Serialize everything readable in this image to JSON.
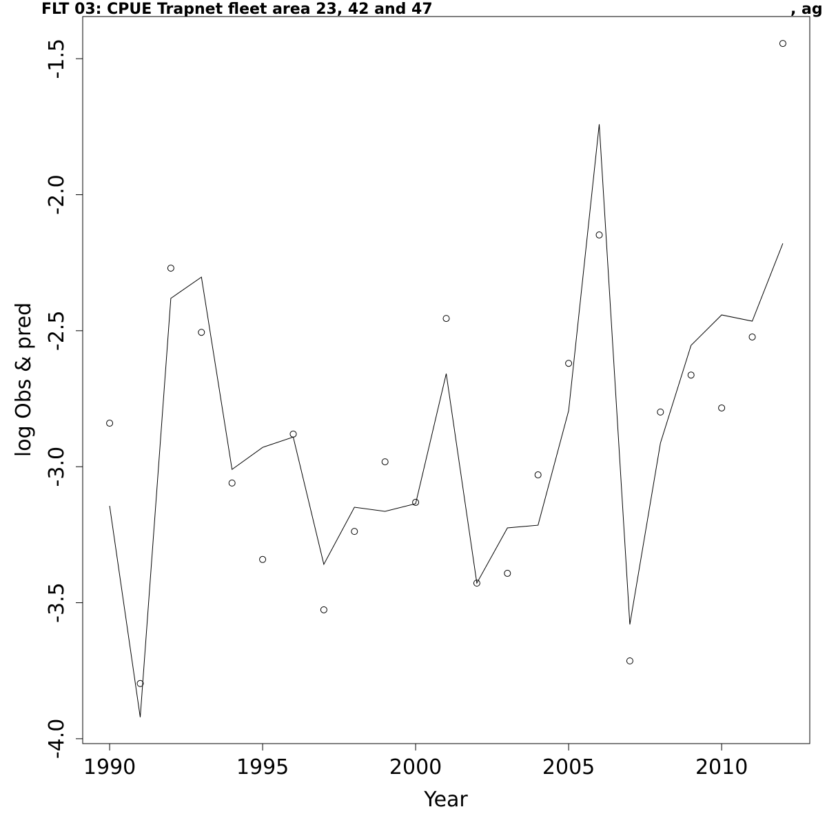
{
  "chart_data": {
    "type": "line",
    "title": "FLT 03: CPUE Trapnet fleet area 23, 42 and 47",
    "title_suffix": ", ag",
    "x_label": "Year",
    "y_label": "log Obs & pred",
    "x": [
      1990,
      1991,
      1992,
      1993,
      1994,
      1995,
      1996,
      1997,
      1998,
      1999,
      2000,
      2001,
      2002,
      2003,
      2004,
      2005,
      2006,
      2007,
      2008,
      2009,
      2010,
      2011,
      2012
    ],
    "series": [
      {
        "style": "points",
        "color": "#000000",
        "values": [
          -2.84,
          -3.797,
          -2.27,
          -2.506,
          -3.06,
          -3.341,
          -2.88,
          -3.526,
          -3.238,
          -2.982,
          -3.131,
          -2.455,
          -3.428,
          -3.392,
          -3.03,
          -2.62,
          -2.148,
          -3.714,
          -2.799,
          -2.663,
          -2.784,
          -2.523,
          -1.444
        ]
      },
      {
        "style": "line",
        "color": "#000000",
        "values": [
          -3.144,
          -3.921,
          -2.381,
          -2.303,
          -3.01,
          -2.929,
          -2.891,
          -3.359,
          -3.149,
          -3.164,
          -3.136,
          -2.658,
          -3.428,
          -3.225,
          -3.215,
          -2.794,
          -1.741,
          -3.58,
          -2.913,
          -2.554,
          -2.442,
          -2.465,
          -2.179
        ]
      }
    ],
    "xlim": [
      1989.12,
      2012.88
    ],
    "xticks": [
      1990,
      1995,
      2000,
      2005,
      2010
    ],
    "ylim": [
      -4.018,
      -1.345
    ],
    "yticks": [
      {
        "value": -4,
        "label": "-4.0"
      },
      -3.5,
      {
        "value": -3,
        "label": "-3.0"
      },
      -2.5,
      {
        "value": -2,
        "label": "-2.0"
      },
      -1.5
    ]
  }
}
